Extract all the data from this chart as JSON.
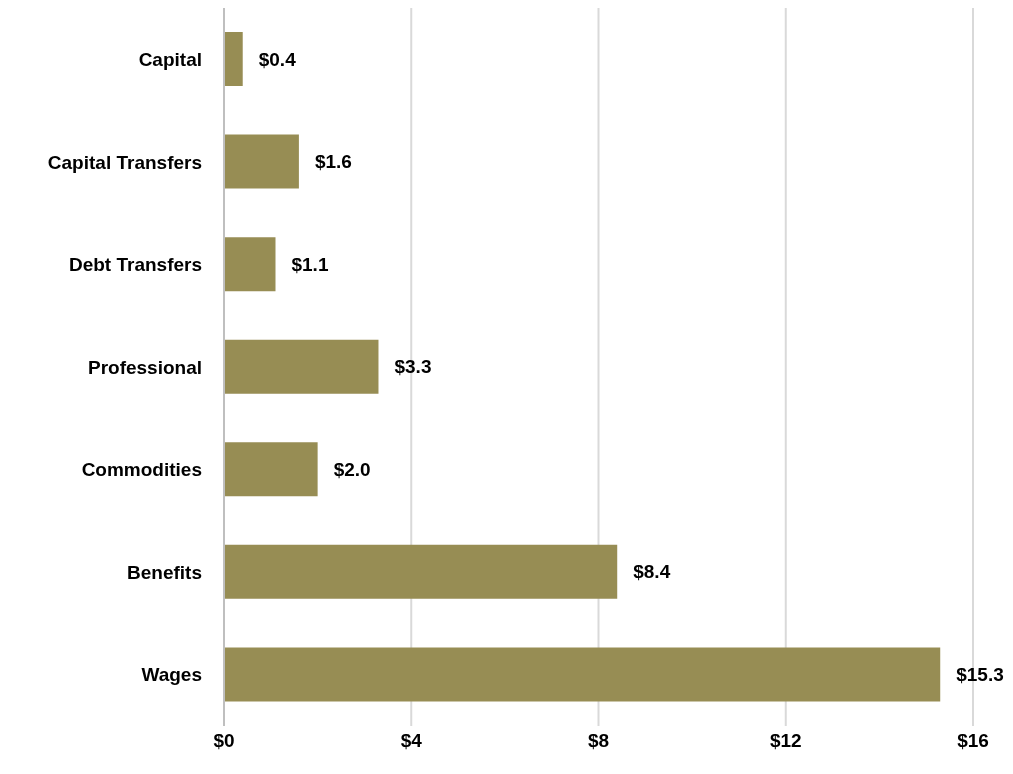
{
  "chart_data": {
    "type": "bar",
    "orientation": "horizontal",
    "categories": [
      "Capital",
      "Capital Transfers",
      "Debt Transfers",
      "Professional",
      "Commodities",
      "Benefits",
      "Wages"
    ],
    "values": [
      0.4,
      1.6,
      1.1,
      3.3,
      2.0,
      8.4,
      15.3
    ],
    "value_labels": [
      "$0.4",
      "$1.6",
      "$1.1",
      "$3.3",
      "$2.0",
      "$8.4",
      "$15.3"
    ],
    "color": "#978d54",
    "xlim": [
      0,
      16
    ],
    "xticks": [
      {
        "value": 0,
        "label": "$0"
      },
      {
        "value": 4,
        "label": "$4"
      },
      {
        "value": 8,
        "label": "$8"
      },
      {
        "value": 12,
        "label": "$12"
      },
      {
        "value": 16,
        "label": "$16"
      }
    ],
    "grid": "x"
  }
}
